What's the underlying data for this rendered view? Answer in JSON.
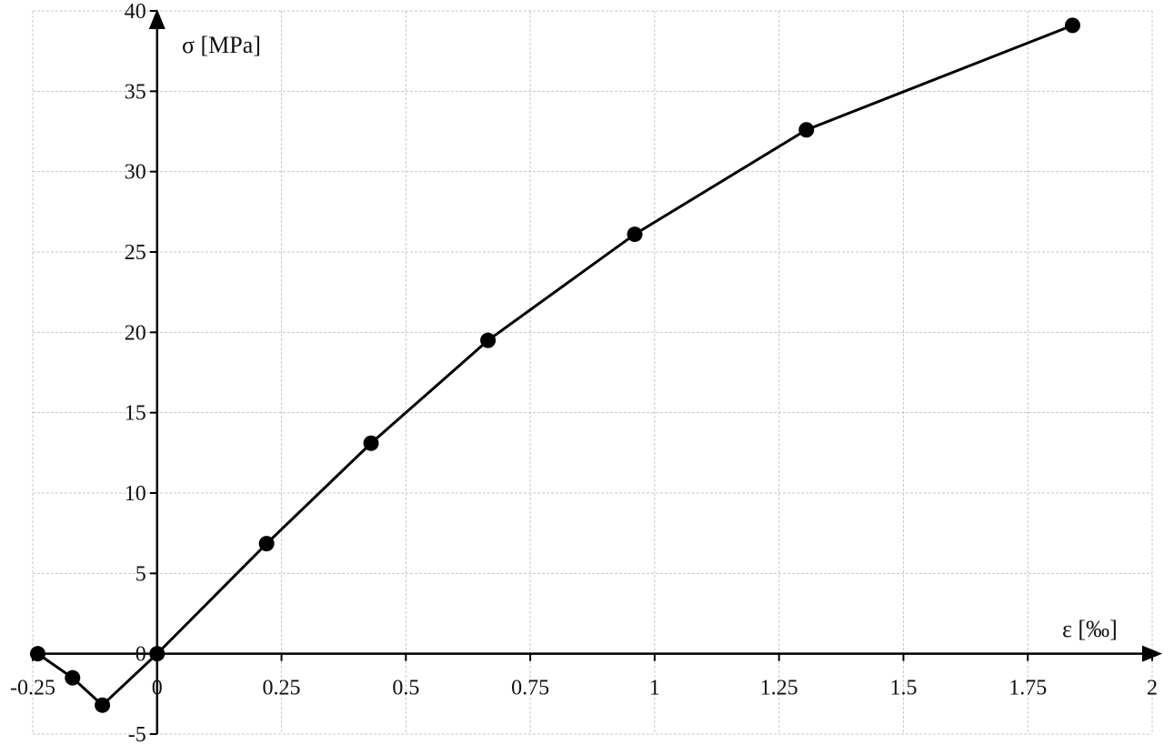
{
  "chart_data": {
    "type": "line",
    "title": "",
    "xlabel": "ε [‰]",
    "ylabel": "σ [MPa]",
    "xlim": [
      -0.25,
      2
    ],
    "ylim": [
      -5,
      40
    ],
    "xticks": [
      -0.25,
      0,
      0.25,
      0.5,
      0.75,
      1,
      1.25,
      1.5,
      1.75,
      2
    ],
    "xtick_labels": [
      "-0.25",
      "0",
      "0.25",
      "0.5",
      "0.75",
      "1",
      "1.25",
      "1.5",
      "1.75",
      "2"
    ],
    "yticks": [
      -5,
      0,
      5,
      10,
      15,
      20,
      25,
      30,
      35,
      40
    ],
    "ytick_labels": [
      "-5",
      "0",
      "5",
      "10",
      "15",
      "20",
      "25",
      "30",
      "35",
      "40"
    ],
    "grid": true,
    "marker": "circle",
    "colors": {
      "line": "#000000",
      "grid": "#c8c8c8"
    },
    "series": [
      {
        "x": [
          -0.24,
          -0.17,
          -0.11,
          0,
          0.22,
          0.43,
          0.665,
          0.96,
          1.305,
          1.84
        ],
        "y": [
          0,
          -1.5,
          -3.2,
          0,
          6.85,
          13.1,
          19.5,
          26.1,
          32.6,
          39.1
        ]
      }
    ]
  }
}
